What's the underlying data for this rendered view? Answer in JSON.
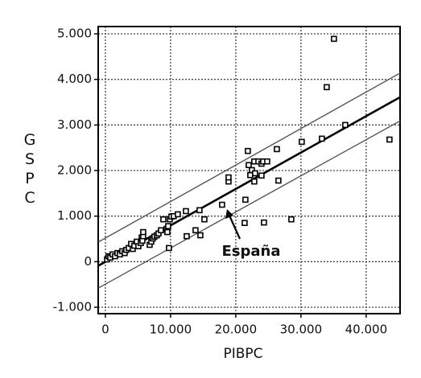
{
  "chart_data": {
    "type": "scatter",
    "x_label": "PIBPC",
    "y_label": "GSPC",
    "annotation": "España",
    "xlim": [
      -1100,
      45200
    ],
    "ylim": [
      -1140,
      5160
    ],
    "xticks": [
      0,
      {
        "value": 10000,
        "label": "10.000"
      },
      {
        "value": 20000,
        "label": "20.000"
      },
      {
        "value": 30000,
        "label": "30.000"
      },
      {
        "value": 40000,
        "label": "40.000"
      }
    ],
    "yticks": [
      {
        "value": -1000,
        "label": "-1.000"
      },
      0,
      {
        "value": 1000,
        "label": "1.000"
      },
      {
        "value": 2000,
        "label": "2.000"
      },
      {
        "value": 3000,
        "label": "3.000"
      },
      {
        "value": 4000,
        "label": "4.000"
      },
      {
        "value": 5000,
        "label": "5.000"
      }
    ],
    "grid": true,
    "series": [
      {
        "color": "#000000",
        "x": [
          250,
          490,
          740,
          1110,
          1480,
          1850,
          2220,
          2590,
          2960,
          3210,
          3580,
          3950,
          4200,
          4440,
          4820,
          5060,
          5430,
          5560,
          5680,
          5800,
          5800,
          6790,
          7040,
          7280,
          7530,
          7900,
          8150,
          8520,
          8890,
          9380,
          9510,
          9630,
          9750,
          9880,
          10120,
          10490,
          11110,
          12350,
          12470,
          13830,
          14440,
          14570,
          15190,
          17900,
          18890,
          18890,
          21360,
          21480,
          21850,
          21980,
          22220,
          22470,
          22840,
          22840,
          22960,
          23460,
          23950,
          23950,
          24200,
          24320,
          24820,
          26300,
          26540,
          28520,
          30120,
          33210,
          33950,
          35060,
          36790,
          43580
        ],
        "values": [
          50,
          120,
          90,
          160,
          120,
          190,
          160,
          230,
          190,
          260,
          300,
          390,
          280,
          350,
          440,
          340,
          410,
          530,
          460,
          560,
          650,
          370,
          440,
          510,
          550,
          580,
          620,
          690,
          930,
          720,
          650,
          780,
          300,
          930,
          990,
          1000,
          1040,
          1110,
          560,
          690,
          1130,
          580,
          930,
          1250,
          1760,
          1850,
          850,
          1360,
          2430,
          2120,
          1900,
          2010,
          2200,
          1760,
          1940,
          2200,
          1890,
          2150,
          2200,
          860,
          2200,
          2470,
          1780,
          930,
          2630,
          2700,
          3830,
          4890,
          3000,
          2680
        ]
      }
    ],
    "lines": [
      {
        "color": "#555555",
        "x": [
          -1100,
          45200
        ],
        "values": [
          430,
          4140
        ]
      },
      {
        "color": "#000000",
        "x": [
          -1100,
          45200
        ],
        "values": [
          -90,
          3610
        ]
      },
      {
        "color": "#555555",
        "x": [
          -1100,
          45200
        ],
        "values": [
          -580,
          3090
        ]
      }
    ]
  }
}
